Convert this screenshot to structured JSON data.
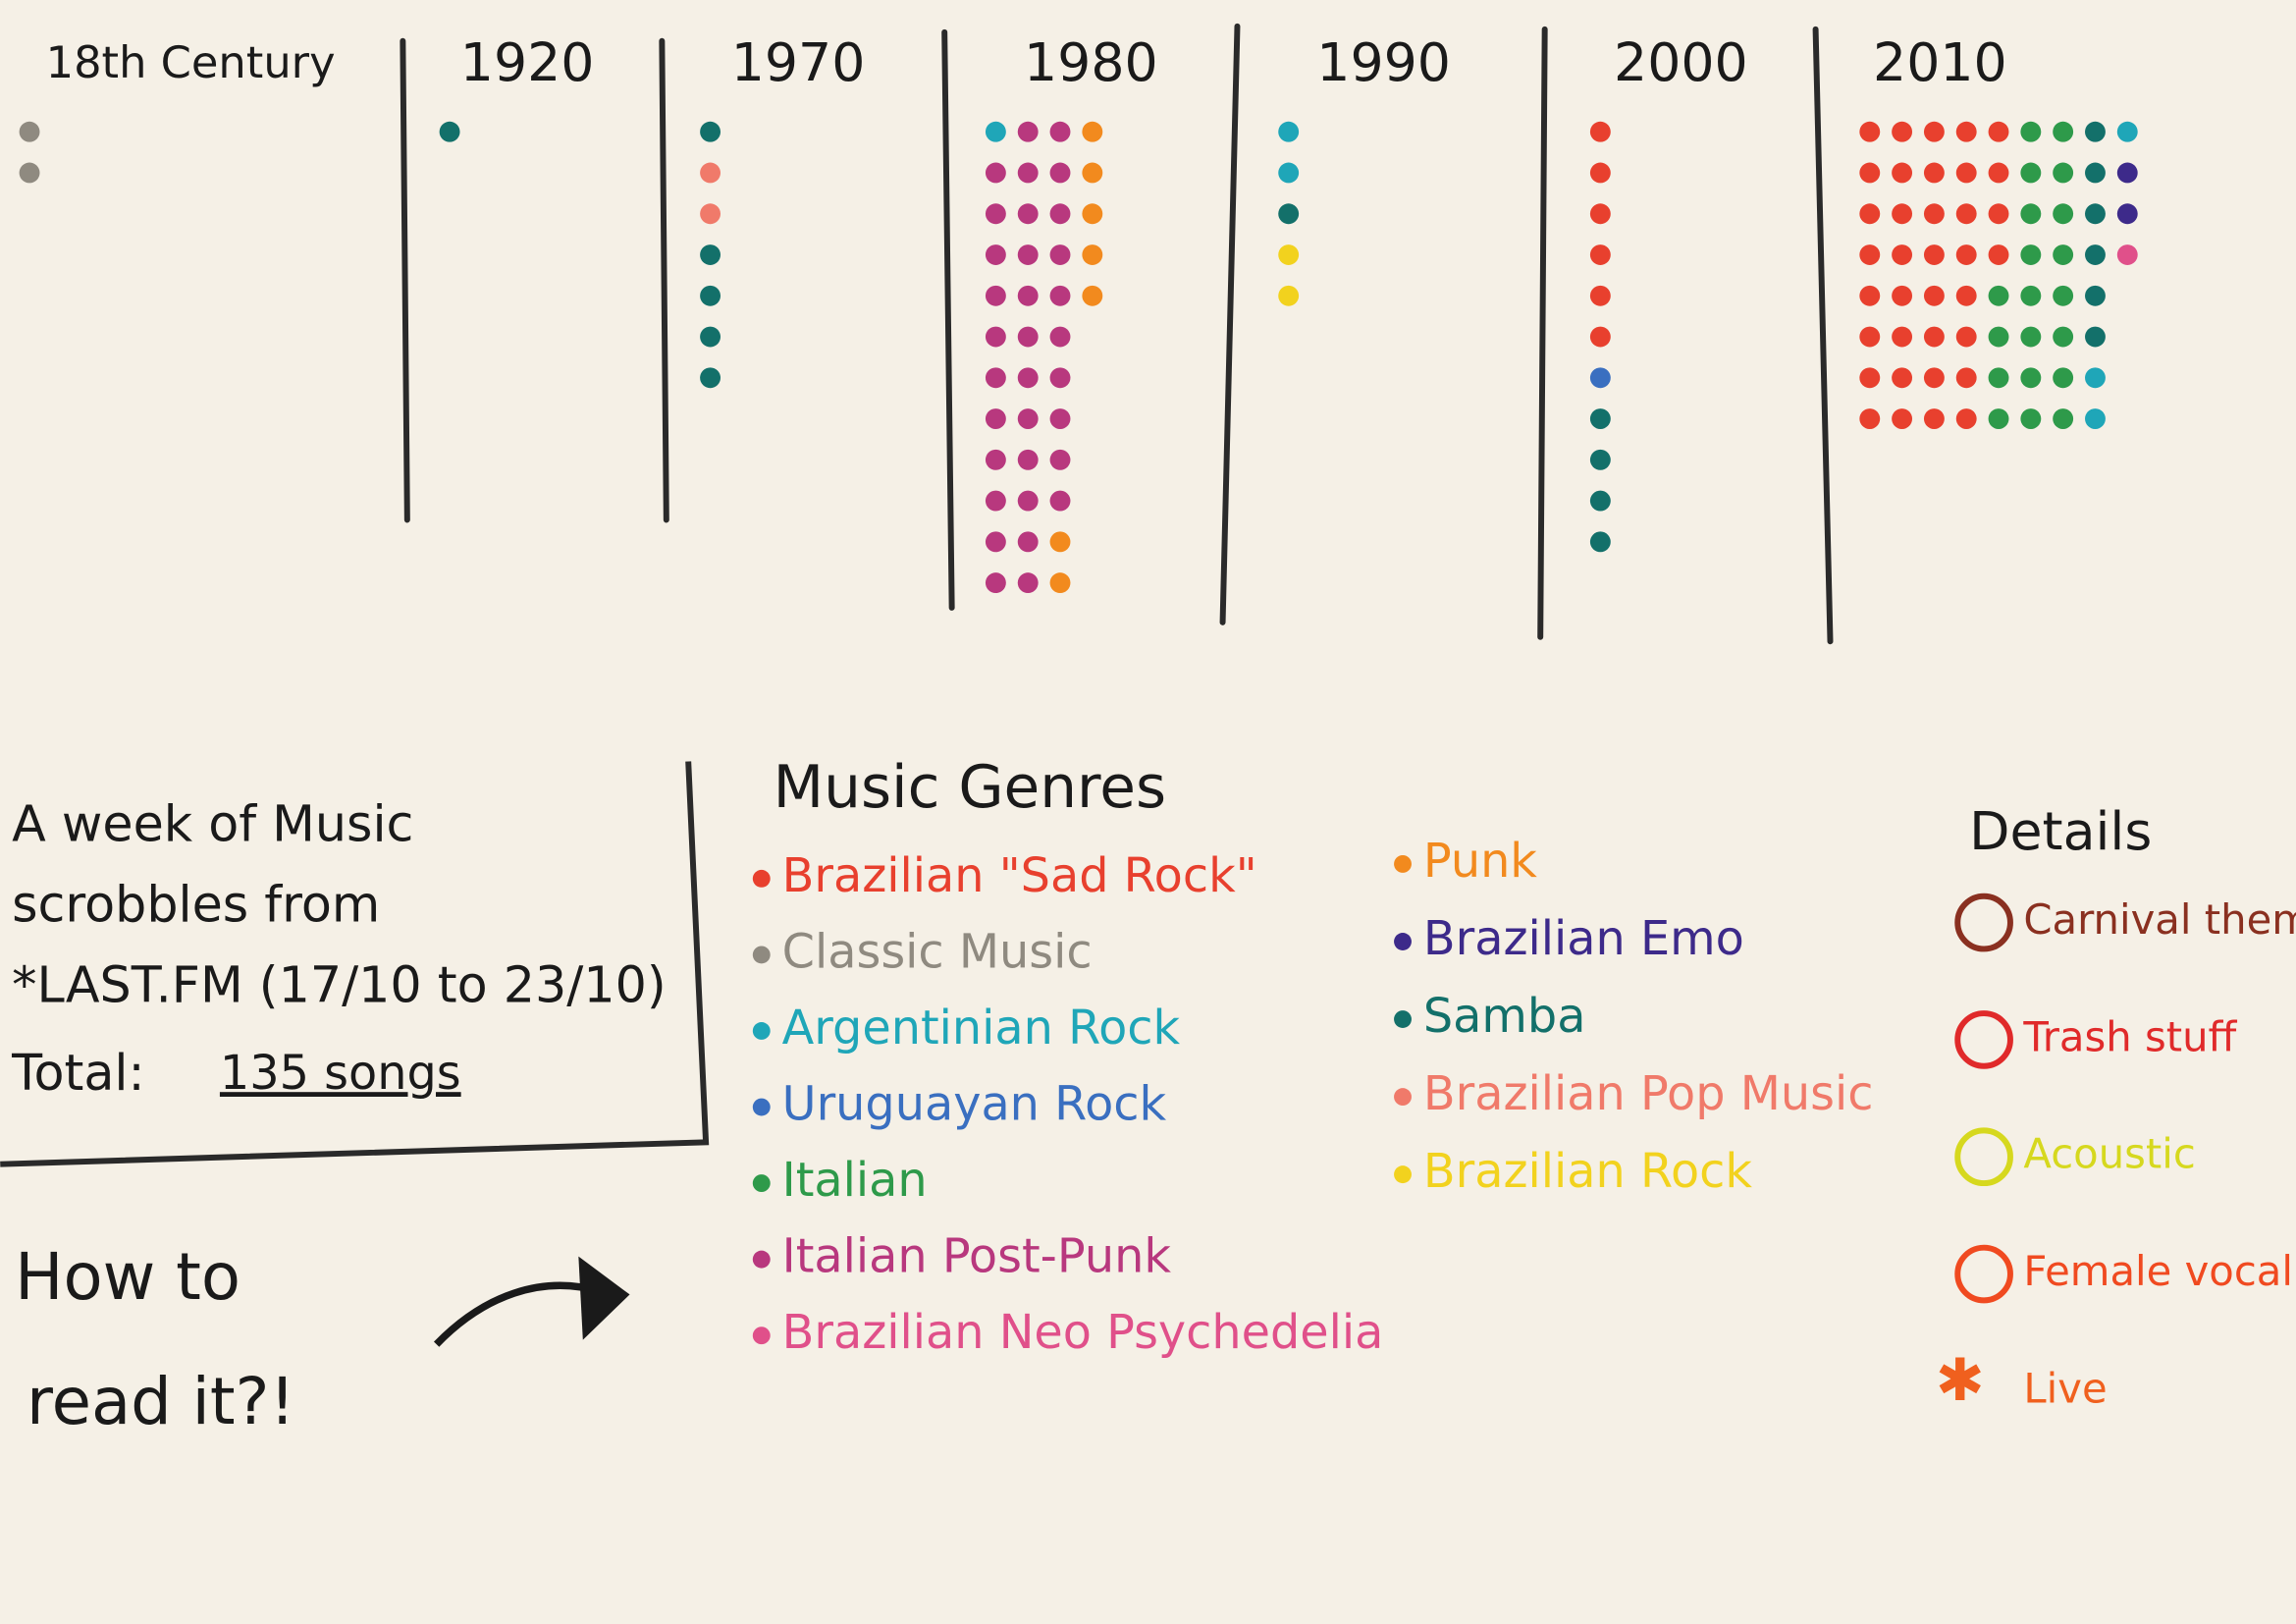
{
  "decades": [
    {
      "label": "18th Century",
      "groups": [
        {
          "genre": "Classic Music",
          "count": 2
        }
      ]
    },
    {
      "label": "1920",
      "groups": [
        {
          "genre": "Samba",
          "count": 1
        }
      ]
    },
    {
      "label": "1970",
      "groups": [
        {
          "genre": "Samba",
          "count": 1
        },
        {
          "genre": "Brazilian Pop Music",
          "count": 2
        },
        {
          "genre": "Samba",
          "count": 4
        }
      ]
    },
    {
      "label": "1980",
      "groups": [
        {
          "genre": "Argentinian Rock",
          "count": 1
        },
        {
          "genre": "Italian Post-Punk",
          "count": 33
        },
        {
          "genre": "Punk",
          "count": 7
        }
      ]
    },
    {
      "label": "1990",
      "groups": [
        {
          "genre": "Argentinian Rock",
          "count": 2
        },
        {
          "genre": "Samba",
          "count": 1
        },
        {
          "genre": "Brazilian Rock",
          "count": 2
        }
      ]
    },
    {
      "label": "2000",
      "groups": [
        {
          "genre": "Brazilian \"Sad Rock\"",
          "count": 6
        },
        {
          "genre": "Uruguayan Rock",
          "count": 1
        },
        {
          "genre": "Samba",
          "count": 4
        }
      ]
    },
    {
      "label": "2010",
      "groups": [
        {
          "genre": "Brazilian \"Sad Rock\"",
          "count": 36
        },
        {
          "genre": "Italian",
          "count": 20
        },
        {
          "genre": "Samba",
          "count": 6
        },
        {
          "genre": "Argentinian Rock",
          "count": 3
        },
        {
          "genre": "Brazilian Emo",
          "count": 2
        },
        {
          "genre": "Brazilian Neo Psychedelia",
          "count": 1
        }
      ]
    }
  ],
  "info": {
    "line1": "A week of Music",
    "line2": "scrobbles from",
    "line3": "*LAST.FM (17/10 to 23/10)",
    "total_label": "Total:",
    "total": "135 songs"
  },
  "how_to": {
    "line1": "How to",
    "line2": "read it?!"
  },
  "legend": {
    "title": "Music Genres",
    "items": [
      {
        "name": "Brazilian \"Sad Rock\"",
        "color": "#e8402e"
      },
      {
        "name": "Classic Music",
        "color": "#8f8a80"
      },
      {
        "name": "Argentinian Rock",
        "color": "#1fa6b8"
      },
      {
        "name": "Uruguayan Rock",
        "color": "#3a6fc0"
      },
      {
        "name": "Italian",
        "color": "#2e9a4a"
      },
      {
        "name": "Italian Post-Punk",
        "color": "#b8387e"
      },
      {
        "name": "Brazilian Neo Psychedelia",
        "color": "#e0508a"
      },
      {
        "name": "Punk",
        "color": "#f28a1e"
      },
      {
        "name": "Brazilian Emo",
        "color": "#3d2a8a"
      },
      {
        "name": "Samba",
        "color": "#13706a"
      },
      {
        "name": "Brazilian Pop Music",
        "color": "#f07a6a"
      },
      {
        "name": "Brazilian Rock",
        "color": "#f2d21e"
      }
    ]
  },
  "details": {
    "title": "Details",
    "items": [
      {
        "name": "Carnival theme",
        "color": "#8a3020"
      },
      {
        "name": "Trash stuff",
        "color": "#e02a2a"
      },
      {
        "name": "Acoustic",
        "color": "#d6d81e"
      },
      {
        "name": "Female vocal",
        "color": "#f04a20"
      },
      {
        "name": "Live",
        "color": "#f0601e"
      }
    ]
  }
}
